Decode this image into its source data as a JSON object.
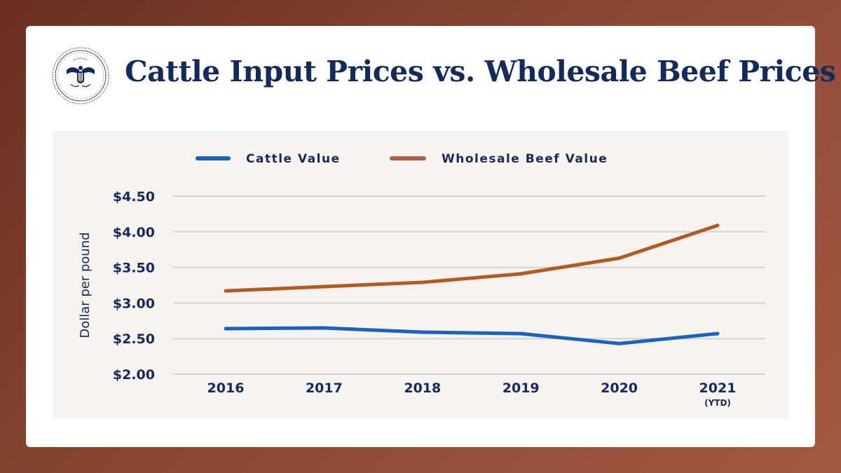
{
  "title": "Cattle Input Prices vs. Wholesale Beef Prices",
  "seal": {
    "icon": "presidential-seal-icon"
  },
  "chart_data": {
    "type": "line",
    "title": "Cattle Input Prices vs. Wholesale Beef Prices",
    "x": [
      "2016",
      "2017",
      "2018",
      "2019",
      "2020",
      "2021"
    ],
    "x_sublabels": [
      "",
      "",
      "",
      "",
      "",
      "(YTD)"
    ],
    "ylabel": "Dollar per pound",
    "ylim": [
      2.0,
      4.5
    ],
    "yticks": [
      4.5,
      4.0,
      3.5,
      3.0,
      2.5,
      2.0
    ],
    "ytick_labels": [
      "$4.50",
      "$4.00",
      "$3.50",
      "$3.00",
      "$2.50",
      "$2.00"
    ],
    "grid": true,
    "legend_position": "top",
    "series": [
      {
        "name": "Cattle Value",
        "legend_text": "Cattle Value",
        "color": "#1565c0",
        "values": [
          2.64,
          2.65,
          2.59,
          2.57,
          2.43,
          2.57
        ]
      },
      {
        "name": "Wholesale Beef Value",
        "legend_text": "Wholesale Beef Value",
        "color": "#b35a1f",
        "legend_color": "#b0604a",
        "values": [
          3.17,
          3.23,
          3.29,
          3.41,
          3.63,
          4.09
        ]
      }
    ]
  }
}
